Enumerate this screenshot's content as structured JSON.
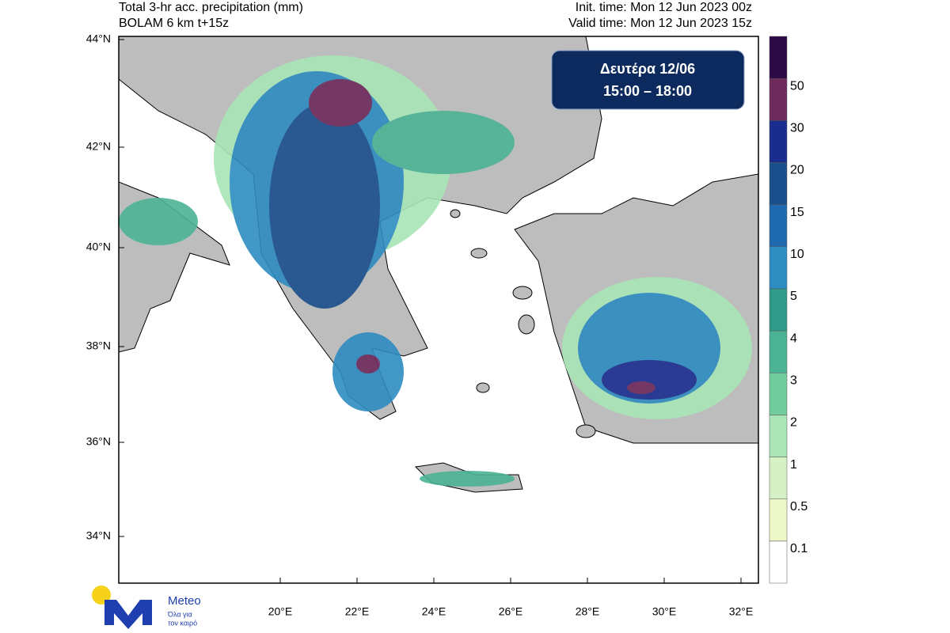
{
  "header": {
    "title": "Total 3-hr acc. precipitation (mm)",
    "model": "BOLAM 6 km t+15z",
    "init_time": "Init. time: Mon 12 Jun 2023 00z",
    "valid_time": "Valid time: Mon 12 Jun 2023 15z"
  },
  "map": {
    "lat_labels": [
      "44°N",
      "42°N",
      "40°N",
      "38°N",
      "36°N",
      "34°N"
    ],
    "lon_labels": [
      "20°E",
      "22°E",
      "24°E",
      "26°E",
      "28°E",
      "30°E",
      "32°E"
    ]
  },
  "time_box": {
    "day": "Δευτέρα 12/06",
    "period": "15:00 – 18:00"
  },
  "colorbar": {
    "levels": [
      0.1,
      0.5,
      1,
      2,
      3,
      4,
      5,
      10,
      15,
      20,
      30,
      50
    ],
    "colors": [
      "#ffffff",
      "#eef7c8",
      "#d6f1c6",
      "#a9e5b6",
      "#72cc9e",
      "#4bb394",
      "#2f9a8a",
      "#2d8cc0",
      "#1f6aae",
      "#1a4f8c",
      "#1a2d8e",
      "#6e2a5c",
      "#2c0a45"
    ]
  },
  "logo": {
    "name": "Meteo",
    "tagline_1": "Όλα για",
    "tagline_2": "τον καιρό"
  }
}
